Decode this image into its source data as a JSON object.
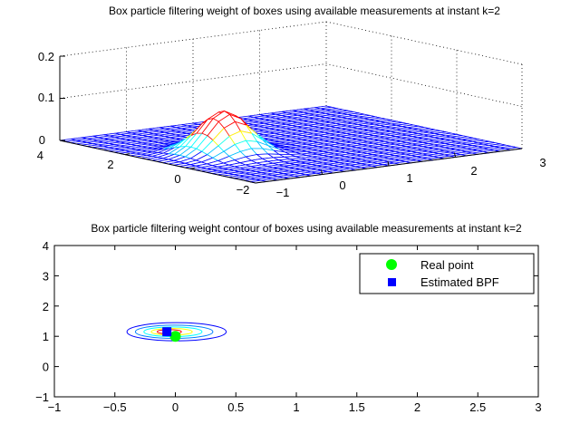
{
  "chart_data": [
    {
      "type": "surface",
      "title": "Box particle filtering weight of boxes using available measurements at instant k=2",
      "x_ticks": [
        "−1",
        "0",
        "1",
        "2",
        "3"
      ],
      "y_ticks": [
        "−2",
        "0",
        "2",
        "4"
      ],
      "z_ticks": [
        "0",
        "0.1",
        "0.2"
      ],
      "xlim": [
        -1,
        3
      ],
      "ylim": [
        -2,
        4
      ],
      "zlim": [
        0,
        0.2
      ],
      "peak": {
        "x": 0,
        "y": 1,
        "z": 0.1
      },
      "grid": "dotted",
      "mesh_color": "#0000ff"
    },
    {
      "type": "contour",
      "title": "Box particle filtering weight contour of boxes using available measurements at instant k=2",
      "x_ticks": [
        "−1",
        "−0.5",
        "0",
        "0.5",
        "1",
        "1.5",
        "2",
        "2.5",
        "3"
      ],
      "y_ticks": [
        "−1",
        "0",
        "1",
        "2",
        "3",
        "4"
      ],
      "xlim": [
        -1,
        3
      ],
      "ylim": [
        -1,
        4
      ],
      "contour_center": {
        "x": -0.05,
        "y": 1.15
      },
      "series": [
        {
          "name": "Real point",
          "marker": "circle",
          "color": "#00ff00",
          "x": 0,
          "y": 1
        },
        {
          "name": "Estimated BPF",
          "marker": "square",
          "color": "#0000ff",
          "x": -0.07,
          "y": 1.15
        }
      ],
      "legend_position": "top-right"
    }
  ]
}
